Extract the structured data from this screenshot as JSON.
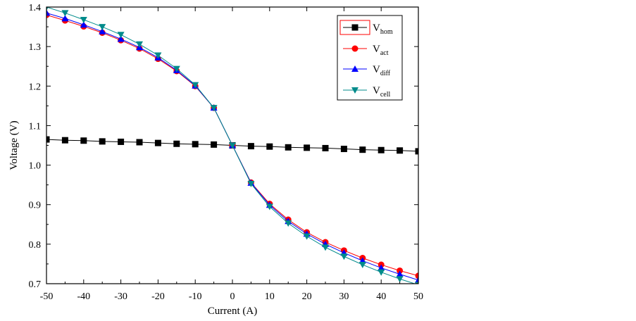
{
  "chart_data": {
    "type": "line",
    "xlabel": "Current (A)",
    "ylabel": "Voltage (V)",
    "xlim": [
      -50,
      50
    ],
    "ylim": [
      0.7,
      1.4
    ],
    "xticks": [
      -50,
      -40,
      -30,
      -20,
      -10,
      0,
      10,
      20,
      30,
      40,
      50
    ],
    "yticks": [
      0.7,
      0.8,
      0.9,
      1.0,
      1.1,
      1.2,
      1.3,
      1.4
    ],
    "x": [
      -50,
      -45,
      -40,
      -35,
      -30,
      -25,
      -20,
      -15,
      -10,
      -5,
      0,
      5,
      10,
      15,
      20,
      25,
      30,
      35,
      40,
      45,
      50
    ],
    "legend_position": "top-right",
    "series": [
      {
        "name": "V",
        "subscript": "hom",
        "color": "#000000",
        "marker": "square",
        "values": [
          1.065,
          1.063,
          1.062,
          1.06,
          1.059,
          1.058,
          1.056,
          1.054,
          1.053,
          1.052,
          1.05,
          1.048,
          1.047,
          1.045,
          1.044,
          1.043,
          1.041,
          1.039,
          1.038,
          1.037,
          1.035
        ]
      },
      {
        "name": "V",
        "subscript": "act",
        "color": "#ff0000",
        "marker": "circle",
        "values": [
          1.38,
          1.366,
          1.351,
          1.335,
          1.316,
          1.295,
          1.269,
          1.238,
          1.2,
          1.145,
          1.05,
          0.956,
          0.902,
          0.862,
          0.83,
          0.805,
          0.784,
          0.765,
          0.748,
          0.733,
          0.72
        ]
      },
      {
        "name": "V",
        "subscript": "diff",
        "color": "#0000ff",
        "marker": "triangle-up",
        "values": [
          1.385,
          1.371,
          1.355,
          1.338,
          1.319,
          1.298,
          1.272,
          1.24,
          1.201,
          1.145,
          1.05,
          0.955,
          0.899,
          0.858,
          0.826,
          0.8,
          0.778,
          0.758,
          0.74,
          0.724,
          0.709
        ]
      },
      {
        "name": "V",
        "subscript": "cell",
        "color": "#008b8b",
        "marker": "triangle-down",
        "values": [
          1.4,
          1.385,
          1.368,
          1.35,
          1.33,
          1.306,
          1.278,
          1.244,
          1.203,
          1.145,
          1.05,
          0.953,
          0.895,
          0.853,
          0.82,
          0.792,
          0.769,
          0.748,
          0.729,
          0.712,
          0.697
        ]
      }
    ]
  }
}
